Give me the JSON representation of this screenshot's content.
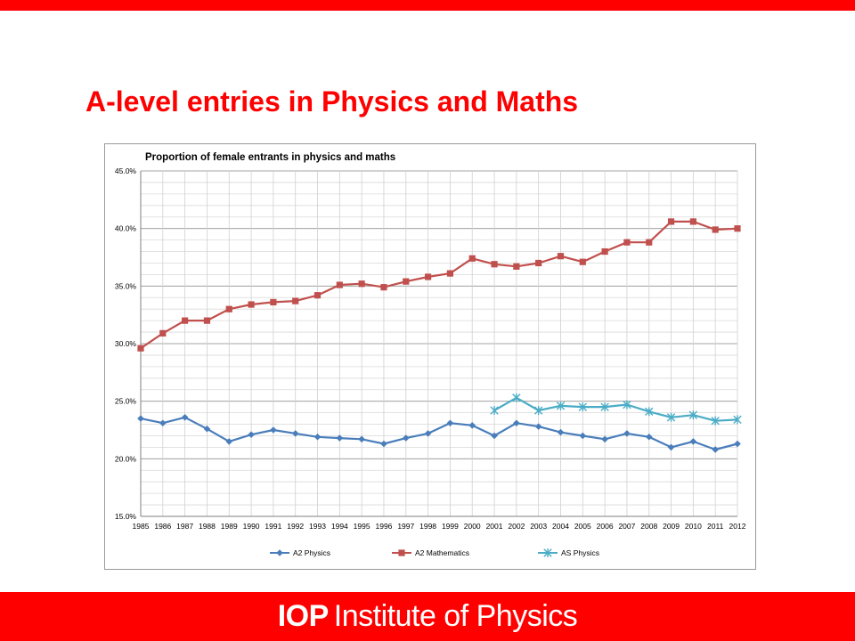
{
  "slide": {
    "title": "A-level entries in Physics and Maths",
    "logo_mark": "IOP",
    "logo_name": "Institute of Physics",
    "accent": "#ff0000"
  },
  "chart_data": {
    "type": "line",
    "title": "Proportion of female entrants in physics and maths",
    "xlabel": "",
    "ylabel": "",
    "x": [
      1985,
      1986,
      1987,
      1988,
      1989,
      1990,
      1991,
      1992,
      1993,
      1994,
      1995,
      1996,
      1997,
      1998,
      1999,
      2000,
      2001,
      2002,
      2003,
      2004,
      2005,
      2006,
      2007,
      2008,
      2009,
      2010,
      2011,
      2012
    ],
    "ylim": [
      15,
      45
    ],
    "yticks": [
      15,
      20,
      25,
      30,
      35,
      40,
      45
    ],
    "y_tick_format": "percent_1dp",
    "grid": true,
    "legend_position": "bottom",
    "series": [
      {
        "name": "A2 Physics",
        "color": "#4a7ebb",
        "marker": "diamond",
        "values": [
          23.5,
          23.1,
          23.6,
          22.6,
          21.5,
          22.1,
          22.5,
          22.2,
          21.9,
          21.8,
          21.7,
          21.3,
          21.8,
          22.2,
          23.1,
          22.9,
          22.0,
          23.1,
          22.8,
          22.3,
          22.0,
          21.7,
          22.2,
          21.9,
          21.0,
          21.5,
          20.8,
          21.3
        ]
      },
      {
        "name": "A2 Mathematics",
        "color": "#c0504d",
        "marker": "square",
        "values": [
          29.6,
          30.9,
          32.0,
          32.0,
          33.0,
          33.4,
          33.6,
          33.7,
          34.2,
          35.1,
          35.2,
          34.9,
          35.4,
          35.8,
          36.1,
          37.4,
          36.9,
          36.7,
          37.0,
          37.6,
          37.1,
          38.0,
          38.8,
          38.8,
          40.6,
          40.6,
          39.9,
          40.0
        ]
      },
      {
        "name": "AS Physics",
        "color": "#4bacc6",
        "marker": "star",
        "values": [
          null,
          null,
          null,
          null,
          null,
          null,
          null,
          null,
          null,
          null,
          null,
          null,
          null,
          null,
          null,
          null,
          24.2,
          25.3,
          24.2,
          24.6,
          24.5,
          24.5,
          24.7,
          24.1,
          23.6,
          23.8,
          23.3,
          23.4
        ]
      }
    ]
  }
}
